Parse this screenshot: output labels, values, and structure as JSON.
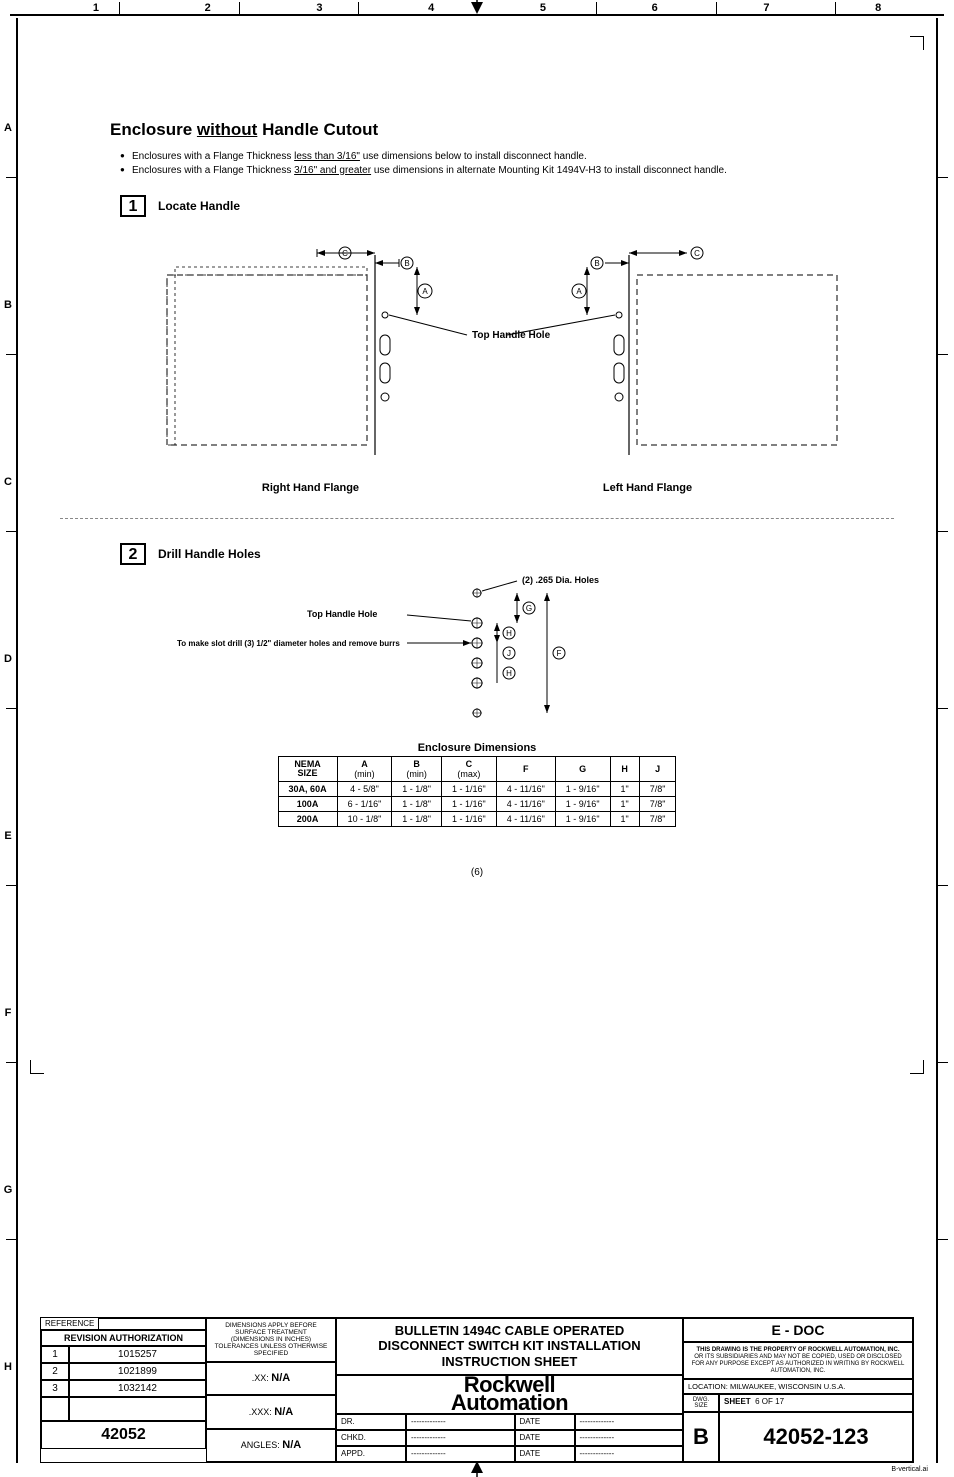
{
  "columns": [
    "1",
    "2",
    "3",
    "4",
    "5",
    "6",
    "7",
    "8"
  ],
  "rows": [
    "A",
    "B",
    "C",
    "D",
    "E",
    "F",
    "G",
    "H"
  ],
  "title_prefix": "Enclosure ",
  "title_underlined": "without",
  "title_suffix": " Handle Cutout",
  "bullet1_a": "Enclosures with a Flange Thickness ",
  "bullet1_u": "less than 3/16\"",
  "bullet1_b": " use dimensions below to install disconnect handle.",
  "bullet2_a": "Enclosures with a Flange Thickness  ",
  "bullet2_u": "3/16\" and greater",
  "bullet2_b": " use dimensions in alternate Mounting Kit 1494V-H3 to install disconnect handle.",
  "step1_num": "1",
  "step1_label": "Locate Handle",
  "step2_num": "2",
  "step2_label": "Drill Handle Holes",
  "fig1_center_label": "Top Handle Hole",
  "fig1_right_caption": "Right Hand Flange",
  "fig1_left_caption": "Left Hand Flange",
  "fig2_holes_label": "(2) .265 Dia.  Holes",
  "fig2_top_label": "Top Handle Hole",
  "fig2_slot_note": "To make slot drill (3) 1/2\" diameter holes and remove burrs",
  "dim_table": {
    "title": "Enclosure Dimensions",
    "headers": [
      "NEMA SIZE",
      "A (min)",
      "B (min)",
      "C (max)",
      "F",
      "G",
      "H",
      "J"
    ],
    "rows": [
      [
        "30A, 60A",
        "4 - 5/8\"",
        "1 - 1/8\"",
        "1 - 1/16\"",
        "4 - 11/16\"",
        "1 - 9/16\"",
        "1\"",
        "7/8\""
      ],
      [
        "100A",
        "6 - 1/16\"",
        "1 - 1/8\"",
        "1 - 1/16\"",
        "4 - 11/16\"",
        "1 - 9/16\"",
        "1\"",
        "7/8\""
      ],
      [
        "200A",
        "10 - 1/8\"",
        "1 - 1/8\"",
        "1 - 1/16\"",
        "4 - 11/16\"",
        "1 - 9/16\"",
        "1\"",
        "7/8\""
      ]
    ]
  },
  "page_index": "(6)",
  "titleblock": {
    "reference": "REFERENCE",
    "revision_header": "REVISION AUTHORIZATION",
    "revisions": [
      {
        "n": "1",
        "v": "1015257"
      },
      {
        "n": "2",
        "v": "1021899"
      },
      {
        "n": "3",
        "v": "1032142"
      }
    ],
    "project": "42052",
    "dim_note": "DIMENSIONS APPLY BEFORE SURFACE TREATMENT",
    "dim_note2": "(DIMENSIONS IN INCHES) TOLERANCES UNLESS OTHERWISE SPECIFIED",
    "tol_xx_label": ".XX:",
    "tol_xx": "N/A",
    "tol_xxx_label": ".XXX:",
    "tol_xxx": "N/A",
    "tol_ang_label": "ANGLES:",
    "tol_ang": "N/A",
    "main_title_l1": "BULLETIN 1494C CABLE OPERATED",
    "main_title_l2": "DISCONNECT SWITCH KIT INSTALLATION",
    "main_title_l3": "INSTRUCTION SHEET",
    "logo_l1": "Rockwell",
    "logo_l2": "Automation",
    "sign": {
      "dr": "DR.",
      "chkd": "CHKD.",
      "appd": "APPD.",
      "date": "DATE",
      "dash": "-------------"
    },
    "edoc": "E - DOC",
    "property": "THIS DRAWING IS THE PROPERTY OF ROCKWELL AUTOMATION, INC.",
    "property2": "OR ITS SUBSIDIARIES AND MAY NOT BE COPIED, USED OR DISCLOSED FOR ANY PURPOSE EXCEPT AS AUTHORIZED IN WRITING BY ROCKWELL AUTOMATION, INC.",
    "location": "LOCATION:   MILWAUKEE,  WISCONSIN   U.S.A.",
    "dwg_size_label": "DWG. SIZE",
    "sheet_label": "SHEET",
    "sheet_val": "6    OF   17",
    "size_letter": "B",
    "dwg_number": "42052-123",
    "footer_file": "B-vertical.ai"
  },
  "colors": {
    "ink": "#000000",
    "dash": "#888888",
    "bg": "#ffffff"
  }
}
